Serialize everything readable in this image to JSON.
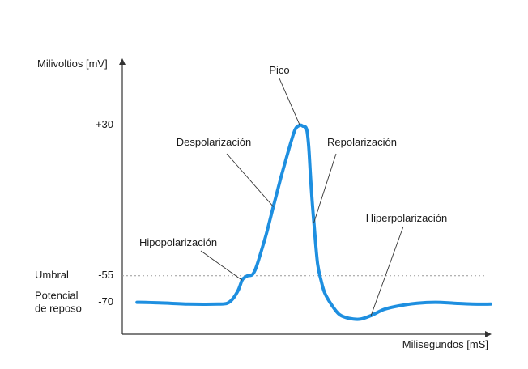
{
  "chart_data": {
    "type": "line",
    "title": "",
    "ylabel": "Milivoltios [mV]",
    "xlabel": "Milisegundos [mS]",
    "y_ticks": [
      {
        "value": 30,
        "label": "+30"
      },
      {
        "value": -55,
        "label": "-55"
      },
      {
        "value": -70,
        "label": "-70"
      }
    ],
    "threshold": {
      "value": -55,
      "label": "Umbral"
    },
    "resting": {
      "value": -70,
      "label_line1": "Potencial",
      "label_line2": "de reposo"
    },
    "ylim": [
      -88,
      66
    ],
    "xlim": [
      0,
      100
    ],
    "grid": false,
    "color": "#1e8fe0",
    "series": [
      {
        "x": [
          4,
          10,
          18,
          26,
          28.5,
          30,
          31.5,
          32.5,
          33.2,
          34,
          35.2,
          36,
          37,
          39,
          41,
          43,
          45,
          46,
          47,
          48.2,
          49,
          50,
          50.6,
          51.2,
          52,
          53,
          54,
          55,
          57,
          59,
          61.5,
          64.5,
          67.5,
          71,
          75,
          80,
          85,
          90,
          95,
          100
        ],
        "y": [
          -70,
          -70.3,
          -71,
          -71,
          -70.5,
          -68,
          -63,
          -57.5,
          -56,
          -55,
          -54.5,
          -52,
          -46,
          -32,
          -16,
          0,
          15,
          22,
          28,
          30,
          29.5,
          28,
          18,
          -3,
          -25,
          -48,
          -58,
          -65,
          -72,
          -77,
          -79,
          -79.5,
          -77.5,
          -74,
          -72,
          -70.5,
          -70,
          -70.5,
          -71,
          -71
        ]
      }
    ],
    "annotations": [
      {
        "text": "Pico",
        "x": 48.2,
        "y": 30
      },
      {
        "text": "Despolarización",
        "x": 41,
        "y": -16
      },
      {
        "text": "Repolarización",
        "x": 52,
        "y": -25
      },
      {
        "text": "Hipopolarización",
        "x": 32.5,
        "y": -57.5
      },
      {
        "text": "Hiperpolarización",
        "x": 67.5,
        "y": -77.5
      }
    ]
  }
}
